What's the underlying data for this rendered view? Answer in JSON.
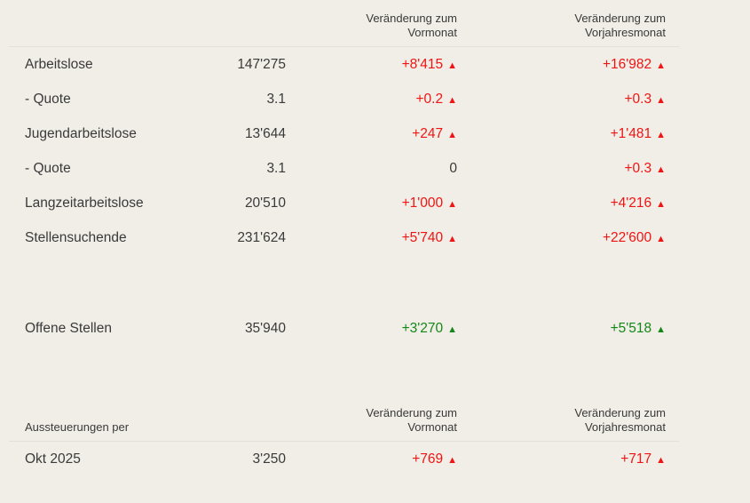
{
  "icons": {
    "up_triangle": "▲"
  },
  "colors": {
    "background": "#f0eee6",
    "divider": "#e0e1dd",
    "text_primary": "#3a3a3a",
    "negative_red": "#f01414",
    "positive_green": "#148719"
  },
  "main_table": {
    "header": {
      "change_prev_month": {
        "line1": "Veränderung zum",
        "line2": "Vormonat"
      },
      "change_prev_year": {
        "line1": "Veränderung zum",
        "line2": "Vorjahresmonat"
      }
    },
    "rows": [
      {
        "label": "Arbeitslose",
        "value": "147'275",
        "change_mom": "+8'415",
        "change_mom_trend": "up",
        "change_yoy": "+16'982",
        "change_yoy_trend": "up"
      },
      {
        "label": "- Quote",
        "value": "3.1",
        "change_mom": "+0.2",
        "change_mom_trend": "up",
        "change_yoy": "+0.3",
        "change_yoy_trend": "up"
      },
      {
        "label": "Jugendarbeitslose",
        "value": "13'644",
        "change_mom": "+247",
        "change_mom_trend": "up",
        "change_yoy": "+1'481",
        "change_yoy_trend": "up"
      },
      {
        "label": "- Quote",
        "value": "3.1",
        "change_mom": "0",
        "change_mom_trend": "none",
        "change_yoy": "+0.3",
        "change_yoy_trend": "up"
      },
      {
        "label": "Langzeitarbeitslose",
        "value": "20'510",
        "change_mom": "+1'000",
        "change_mom_trend": "up",
        "change_yoy": "+4'216",
        "change_yoy_trend": "up"
      },
      {
        "label": "Stellensuchende",
        "value": "231'624",
        "change_mom": "+5'740",
        "change_mom_trend": "up",
        "change_yoy": "+22'600",
        "change_yoy_trend": "up"
      },
      {
        "label": "Offene Stellen",
        "value": "35'940",
        "change_mom": "+3'270",
        "change_mom_trend": "up",
        "change_yoy": "+5'518",
        "change_yoy_trend": "up"
      }
    ]
  },
  "aussteuerungen_table": {
    "header": {
      "label": "Aussteuerungen per",
      "change_prev_month": {
        "line1": "Veränderung zum",
        "line2": "Vormonat"
      },
      "change_prev_year": {
        "line1": "Veränderung zum",
        "line2": "Vorjahresmonat"
      }
    },
    "rows": [
      {
        "label": "Okt 2025",
        "value": "3'250",
        "change_mom": "+769",
        "change_mom_trend": "up",
        "change_yoy": "+717",
        "change_yoy_trend": "up"
      }
    ]
  }
}
